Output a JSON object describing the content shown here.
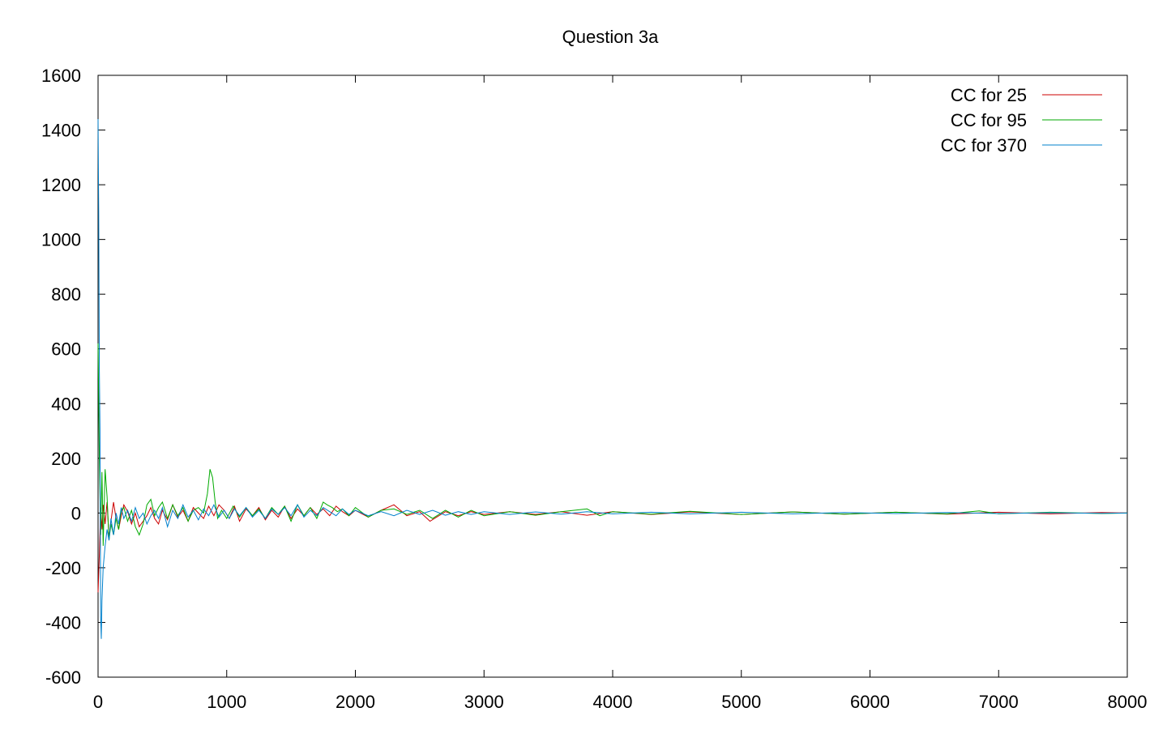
{
  "chart_data": {
    "type": "line",
    "title": "Question 3a",
    "xlabel": "",
    "ylabel": "",
    "xlim": [
      0,
      8000
    ],
    "ylim": [
      -600,
      1600
    ],
    "x_ticks": [
      0,
      1000,
      2000,
      3000,
      4000,
      5000,
      6000,
      7000,
      8000
    ],
    "y_ticks": [
      -600,
      -400,
      -200,
      0,
      200,
      400,
      600,
      800,
      1000,
      1200,
      1400,
      1600
    ],
    "grid": false,
    "legend_position": "top-right",
    "series": [
      {
        "name": "CC for 25",
        "color": "#cc0000",
        "x": [
          0,
          10,
          20,
          30,
          40,
          55,
          70,
          85,
          100,
          120,
          140,
          160,
          180,
          200,
          230,
          260,
          290,
          320,
          350,
          380,
          410,
          440,
          470,
          500,
          540,
          580,
          620,
          660,
          700,
          740,
          780,
          820,
          860,
          900,
          940,
          980,
          1020,
          1060,
          1100,
          1150,
          1200,
          1250,
          1300,
          1350,
          1400,
          1450,
          1500,
          1550,
          1600,
          1650,
          1700,
          1750,
          1800,
          1850,
          1900,
          1950,
          2000,
          2100,
          2200,
          2300,
          2400,
          2500,
          2580,
          2700,
          2800,
          2900,
          3000,
          3200,
          3400,
          3600,
          3800,
          4000,
          4300,
          4600,
          5000,
          5400,
          5800,
          6200,
          6600,
          7000,
          7400,
          7800,
          8000
        ],
        "y": [
          -290,
          -150,
          20,
          -60,
          30,
          -40,
          40,
          -90,
          -30,
          40,
          -20,
          -60,
          -10,
          30,
          5,
          -40,
          0,
          -50,
          -30,
          -10,
          20,
          -20,
          -40,
          10,
          -25,
          30,
          -15,
          10,
          -30,
          20,
          0,
          -20,
          25,
          -10,
          30,
          10,
          -20,
          25,
          -30,
          15,
          -10,
          20,
          -25,
          10,
          -15,
          25,
          -20,
          15,
          -10,
          20,
          -5,
          15,
          -10,
          25,
          5,
          -10,
          10,
          -15,
          10,
          30,
          -10,
          5,
          -30,
          5,
          -10,
          5,
          -5,
          5,
          -5,
          5,
          -8,
          5,
          -5,
          4,
          -5,
          4,
          -4,
          3,
          -4,
          3,
          -3,
          2,
          0
        ]
      },
      {
        "name": "CC for 95",
        "color": "#00aa00",
        "x": [
          0,
          10,
          20,
          30,
          40,
          55,
          70,
          85,
          100,
          120,
          140,
          160,
          180,
          200,
          230,
          260,
          290,
          320,
          350,
          380,
          410,
          440,
          470,
          500,
          540,
          580,
          620,
          660,
          700,
          740,
          780,
          820,
          850,
          870,
          890,
          910,
          930,
          960,
          1000,
          1050,
          1100,
          1150,
          1200,
          1250,
          1300,
          1350,
          1400,
          1450,
          1500,
          1550,
          1600,
          1650,
          1700,
          1750,
          1780,
          1820,
          1860,
          1900,
          1950,
          2000,
          2100,
          2200,
          2300,
          2400,
          2500,
          2600,
          2700,
          2800,
          2900,
          3000,
          3200,
          3400,
          3600,
          3800,
          3900,
          4000,
          4300,
          4600,
          5000,
          5400,
          5800,
          6200,
          6600,
          6850,
          7000,
          7400,
          7800,
          8000
        ],
        "y": [
          620,
          200,
          -80,
          150,
          -120,
          160,
          60,
          -100,
          -40,
          -80,
          -20,
          -60,
          10,
          20,
          -30,
          10,
          -50,
          -80,
          -40,
          30,
          50,
          -10,
          20,
          40,
          -20,
          30,
          -10,
          20,
          -30,
          10,
          20,
          0,
          70,
          160,
          130,
          40,
          -20,
          10,
          -20,
          25,
          -15,
          20,
          -10,
          15,
          -20,
          20,
          -5,
          25,
          -30,
          30,
          -10,
          20,
          -20,
          40,
          30,
          20,
          5,
          15,
          -10,
          20,
          -15,
          10,
          15,
          -5,
          10,
          -20,
          10,
          -15,
          10,
          -10,
          5,
          -8,
          5,
          15,
          -10,
          5,
          -4,
          6,
          -5,
          4,
          -4,
          3,
          -3,
          8,
          -3,
          3,
          -2,
          0
        ]
      },
      {
        "name": "CC for 370",
        "color": "#0080cc",
        "x": [
          0,
          5,
          10,
          15,
          20,
          25,
          30,
          40,
          55,
          70,
          85,
          100,
          120,
          140,
          160,
          180,
          200,
          230,
          260,
          290,
          320,
          350,
          380,
          410,
          440,
          470,
          500,
          540,
          580,
          620,
          660,
          700,
          740,
          780,
          820,
          860,
          900,
          940,
          980,
          1020,
          1060,
          1100,
          1150,
          1200,
          1250,
          1300,
          1350,
          1400,
          1450,
          1500,
          1550,
          1600,
          1650,
          1700,
          1750,
          1800,
          1850,
          1900,
          1950,
          2000,
          2100,
          2200,
          2300,
          2400,
          2500,
          2600,
          2700,
          2800,
          2900,
          3000,
          3200,
          3400,
          3600,
          3800,
          4000,
          4300,
          4600,
          5000,
          5400,
          5800,
          6200,
          6600,
          7000,
          7400,
          7800,
          8000
        ],
        "y": [
          1440,
          1100,
          520,
          300,
          -380,
          -460,
          -320,
          -200,
          -120,
          -60,
          -100,
          -20,
          -80,
          0,
          -40,
          20,
          -20,
          10,
          -30,
          20,
          -20,
          0,
          -40,
          -10,
          10,
          -20,
          20,
          -50,
          10,
          -20,
          30,
          -15,
          10,
          -25,
          15,
          -10,
          30,
          -15,
          10,
          -20,
          15,
          -10,
          20,
          -15,
          10,
          -20,
          15,
          -5,
          20,
          -10,
          30,
          -15,
          10,
          -10,
          20,
          5,
          -10,
          15,
          -5,
          10,
          -10,
          5,
          -10,
          10,
          -5,
          10,
          -8,
          5,
          -5,
          5,
          -5,
          4,
          -4,
          5,
          -3,
          3,
          -3,
          3,
          -3,
          2,
          -2,
          2,
          -2,
          1,
          -1,
          0
        ]
      }
    ]
  }
}
